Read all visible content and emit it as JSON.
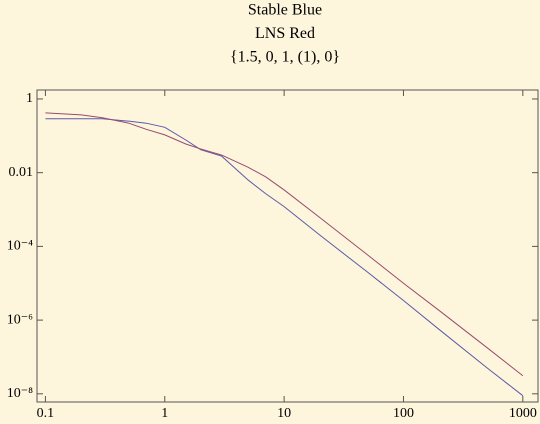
{
  "chart_data": {
    "type": "line",
    "title_lines": [
      "Stable Blue",
      "LNS Red",
      "{1.5, 0, 1, (1), 0}"
    ],
    "x": [
      0.1,
      0.2,
      0.3,
      0.5,
      0.7,
      1,
      1.5,
      2,
      3,
      5,
      7,
      10,
      20,
      50,
      100,
      200,
      500,
      1000
    ],
    "series": [
      {
        "name": "Stable",
        "color": "#5b5ba8",
        "values": [
          0.29,
          0.29,
          0.29,
          0.25,
          0.22,
          0.17,
          0.077,
          0.042,
          0.028,
          0.0063,
          0.0027,
          0.0012,
          0.0002,
          2e-05,
          3.4e-06,
          5.5e-07,
          5.1e-08,
          8.9e-09
        ]
      },
      {
        "name": "LNS",
        "color": "#9a4a6e",
        "values": [
          0.42,
          0.37,
          0.31,
          0.22,
          0.15,
          0.106,
          0.06,
          0.044,
          0.03,
          0.014,
          0.0077,
          0.0034,
          0.0006,
          5.9e-05,
          1e-05,
          1.8e-06,
          1.8e-07,
          3.1e-08
        ]
      }
    ],
    "xlog": true,
    "ylog": true,
    "xlim": [
      0.085,
      1340
    ],
    "ylim": [
      6e-09,
      1.75
    ],
    "xticks": [
      0.1,
      1,
      10,
      100,
      1000
    ],
    "yticks": [
      1,
      0.01,
      {
        "value": 0.0001,
        "label": "10⁻⁴"
      },
      {
        "value": 1e-06,
        "label": "10⁻⁶"
      },
      {
        "value": 1e-08,
        "label": "10⁻⁸"
      }
    ],
    "background": "#fdf5dc",
    "frame_color": "#555555"
  }
}
